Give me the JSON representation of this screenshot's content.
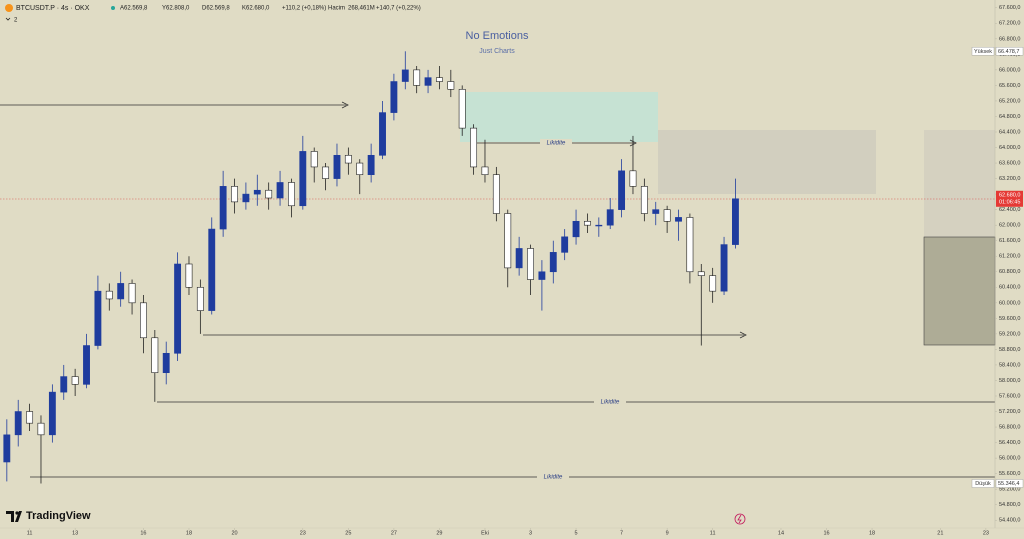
{
  "header": {
    "symbol": "BTCUSDT.P · 4s · OKX",
    "open": "A62.569,8",
    "high": "Y62.808,0",
    "low": "D62.569,8",
    "close": "K62.680,0",
    "change": "+110,2 (+0,18%)",
    "volume_label": "Hacim",
    "volume": "268,461M",
    "volume_change": "+140,7 (+0,22%)",
    "indicator_count": "2"
  },
  "brand": "TradingView",
  "chart_data": {
    "type": "candlestick",
    "title": "No Emotions",
    "subtitle": "Just Charts",
    "x": [
      -1,
      -0.5,
      0,
      0.5,
      1,
      1.5,
      2,
      2.5,
      3,
      3.5,
      4,
      4.5,
      5,
      5.5,
      6,
      6.5,
      7,
      7.5,
      8,
      8.5,
      9,
      9.5,
      10,
      10.5,
      11,
      11.5,
      12,
      12.5,
      13,
      13.5,
      14,
      14.5,
      15,
      15.5,
      16,
      16.5,
      17,
      17.5,
      18,
      18.5,
      19,
      19.5,
      20,
      20.5,
      21,
      21.5,
      22,
      22.5,
      23,
      23.5,
      24,
      24.5,
      25,
      25.5,
      26,
      26.5,
      27,
      27.5,
      28,
      28.5,
      29,
      29.5,
      30,
      30.5,
      31
    ],
    "open": [
      55900,
      56600,
      57200,
      56900,
      56600,
      57700,
      58100,
      57900,
      58900,
      60300,
      60100,
      60500,
      60000,
      59100,
      58200,
      58700,
      61000,
      60400,
      59800,
      61900,
      63000,
      62600,
      62800,
      62900,
      62700,
      63100,
      62500,
      63900,
      63500,
      63200,
      63800,
      63600,
      63300,
      63800,
      64900,
      65700,
      66000,
      65600,
      65800,
      65700,
      65500,
      64500,
      63500,
      63300,
      62300,
      60900,
      61400,
      60600,
      60800,
      61300,
      61700,
      62100,
      62000,
      62000,
      62400,
      63400,
      63000,
      62300,
      62400,
      62100,
      62200,
      60800,
      60700,
      60300,
      61500
    ],
    "high": [
      57000,
      57500,
      57400,
      57100,
      57900,
      58400,
      58300,
      59200,
      60700,
      60500,
      60800,
      60600,
      60200,
      59300,
      59000,
      61300,
      61200,
      60600,
      62200,
      63400,
      63200,
      63100,
      63300,
      63100,
      63400,
      63200,
      64300,
      64000,
      63600,
      64100,
      64000,
      63700,
      64100,
      65200,
      65900,
      66478.7,
      66100,
      66000,
      66100,
      66000,
      65600,
      64600,
      64200,
      63500,
      62400,
      61700,
      61500,
      61100,
      61600,
      61900,
      62400,
      62300,
      62200,
      62700,
      63700,
      64300,
      63200,
      62600,
      62500,
      62400,
      62300,
      61000,
      60900,
      61700,
      63200
    ],
    "low": [
      55400,
      56300,
      56700,
      55346.4,
      56400,
      57500,
      57600,
      57800,
      58800,
      59800,
      59900,
      59700,
      58700,
      57450,
      57900,
      58500,
      60200,
      59200,
      59700,
      61700,
      62300,
      62400,
      62500,
      62400,
      62500,
      62200,
      62400,
      63100,
      62900,
      63000,
      63300,
      62800,
      63100,
      63700,
      64700,
      65500,
      65400,
      65400,
      65500,
      65300,
      64300,
      63300,
      63100,
      62100,
      60400,
      60700,
      60200,
      59800,
      60500,
      61100,
      61500,
      61800,
      61700,
      61900,
      62200,
      62800,
      62100,
      62000,
      61800,
      61600,
      60500,
      58900,
      60000,
      60200,
      61400
    ],
    "close": [
      56600,
      57200,
      56900,
      56600,
      57700,
      58100,
      57900,
      58900,
      60300,
      60100,
      60500,
      60000,
      59100,
      58200,
      58700,
      61000,
      60400,
      59800,
      61900,
      63000,
      62600,
      62800,
      62900,
      62700,
      63100,
      62500,
      63900,
      63500,
      63200,
      63800,
      63600,
      63300,
      63800,
      64900,
      65700,
      66000,
      65600,
      65800,
      65700,
      65500,
      64500,
      63500,
      63300,
      62300,
      60900,
      61400,
      60600,
      60800,
      61300,
      61700,
      62100,
      62000,
      62000,
      62400,
      63400,
      63000,
      62300,
      62400,
      62100,
      62200,
      60800,
      60700,
      60300,
      61500,
      62680
    ],
    "up_color": "#1f3c9e",
    "down_color": "#ffffff",
    "xlim": [
      -1.3,
      42.4
    ],
    "ylim": [
      54200,
      67800
    ],
    "xticks": [
      {
        "value": 0,
        "label": "11"
      },
      {
        "value": 2,
        "label": "13"
      },
      {
        "value": 5,
        "label": "16"
      },
      {
        "value": 7,
        "label": "18"
      },
      {
        "value": 9,
        "label": "20"
      },
      {
        "value": 12,
        "label": "23"
      },
      {
        "value": 14,
        "label": "25"
      },
      {
        "value": 16,
        "label": "27"
      },
      {
        "value": 18,
        "label": "29"
      },
      {
        "value": 20,
        "label": "Eki"
      },
      {
        "value": 22,
        "label": "3"
      },
      {
        "value": 24,
        "label": "5"
      },
      {
        "value": 26,
        "label": "7"
      },
      {
        "value": 28,
        "label": "9"
      },
      {
        "value": 30,
        "label": "11"
      },
      {
        "value": 33,
        "label": "14"
      },
      {
        "value": 35,
        "label": "16"
      },
      {
        "value": 37,
        "label": "18"
      },
      {
        "value": 40,
        "label": "21"
      },
      {
        "value": 42,
        "label": "23"
      }
    ],
    "yticks": [
      {
        "value": 54400,
        "label": "54.400,0"
      },
      {
        "value": 54800,
        "label": "54.800,0"
      },
      {
        "value": 55200,
        "label": "55.200,0"
      },
      {
        "value": 55600,
        "label": "55.600,0"
      },
      {
        "value": 56000,
        "label": "56.000,0"
      },
      {
        "value": 56400,
        "label": "56.400,0"
      },
      {
        "value": 56800,
        "label": "56.800,0"
      },
      {
        "value": 57200,
        "label": "57.200,0"
      },
      {
        "value": 57600,
        "label": "57.600,0"
      },
      {
        "value": 58000,
        "label": "58.000,0"
      },
      {
        "value": 58400,
        "label": "58.400,0"
      },
      {
        "value": 58800,
        "label": "58.800,0"
      },
      {
        "value": 59200,
        "label": "59.200,0"
      },
      {
        "value": 59600,
        "label": "59.600,0"
      },
      {
        "value": 60000,
        "label": "60.000,0"
      },
      {
        "value": 60400,
        "label": "60.400,0"
      },
      {
        "value": 60800,
        "label": "60.800,0"
      },
      {
        "value": 61200,
        "label": "61.200,0"
      },
      {
        "value": 61600,
        "label": "61.600,0"
      },
      {
        "value": 62000,
        "label": "62.000,0"
      },
      {
        "value": 62400,
        "label": "62.400,0"
      },
      {
        "value": 62800,
        "label": "62.800,0"
      },
      {
        "value": 63200,
        "label": "63.200,0"
      },
      {
        "value": 63600,
        "label": "63.600,0"
      },
      {
        "value": 64000,
        "label": "64.000,0"
      },
      {
        "value": 64400,
        "label": "64.400,0"
      },
      {
        "value": 64800,
        "label": "64.800,0"
      },
      {
        "value": 65200,
        "label": "65.200,0"
      },
      {
        "value": 65600,
        "label": "65.600,0"
      },
      {
        "value": 66000,
        "label": "66.000,0"
      },
      {
        "value": 66400,
        "label": "66.400,0"
      },
      {
        "value": 66800,
        "label": "66.800,0"
      },
      {
        "value": 67200,
        "label": "67.200,0"
      },
      {
        "value": 67600,
        "label": "67.600,0"
      }
    ],
    "grid": false,
    "last_price": {
      "value": 62680,
      "label": "62.680,0"
    },
    "countdown": "01:06:45",
    "high_marker": {
      "title": "Yüksek",
      "value": 66478.7,
      "label": "66.478,7"
    },
    "low_marker": {
      "title": "Düşük",
      "value": 55346.4,
      "label": "55.346,4"
    },
    "annotations": [
      "Likidite",
      "Likidite",
      "Likidite"
    ]
  }
}
